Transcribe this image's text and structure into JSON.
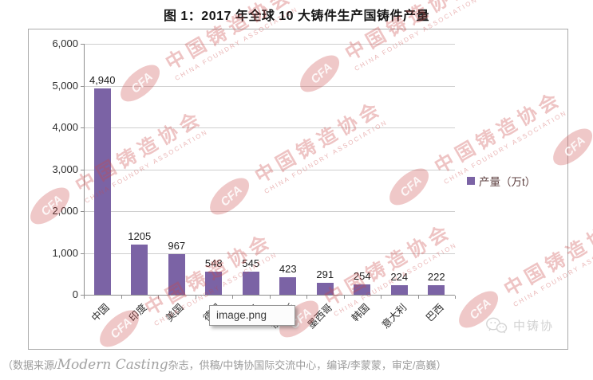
{
  "title": "图 1：2017 年全球 10 大铸件生产国铸件产量",
  "chart_data": {
    "type": "bar",
    "title": "图 1：2017 年全球 10 大铸件生产国铸件产量",
    "categories": [
      "中国",
      "印度",
      "美国",
      "德国",
      "日本",
      "俄罗斯",
      "墨西哥",
      "韩国",
      "意大利",
      "巴西"
    ],
    "values": [
      4940,
      1205,
      967,
      548,
      545,
      423,
      291,
      254,
      224,
      222
    ],
    "value_labels": [
      "4,940",
      "1205",
      "967",
      "548",
      "545",
      "423",
      "291",
      "254",
      "224",
      "222"
    ],
    "ylim": [
      0,
      6000
    ],
    "y_tick_step": 1000,
    "y_tick_labels": [
      "0",
      "1,000",
      "2,000",
      "3,000",
      "4,000",
      "5,000",
      "6,000"
    ],
    "grid": true,
    "legend_position": "right",
    "legend": "产量（万t）",
    "bar_color": "#7B63A5",
    "xlabel": "",
    "ylabel": ""
  },
  "legend": {
    "label": "产量（万t）",
    "swatch_color": "#7B63A5"
  },
  "watermark": {
    "main": "中国铸造协会",
    "sub": "CHINA FOUNDRY ASSOCIATION",
    "logo_text": "CFA",
    "color": "#cb4949"
  },
  "tooltip": {
    "text": "image.png"
  },
  "wechat_badge": {
    "label": "中铸协"
  },
  "caption": {
    "part1": "（数据来源/",
    "part2": "Modern Casting",
    "part3": "杂志，供稿/中铸协国际交流中心，编译/李蒙蒙，审定/高巍）"
  }
}
